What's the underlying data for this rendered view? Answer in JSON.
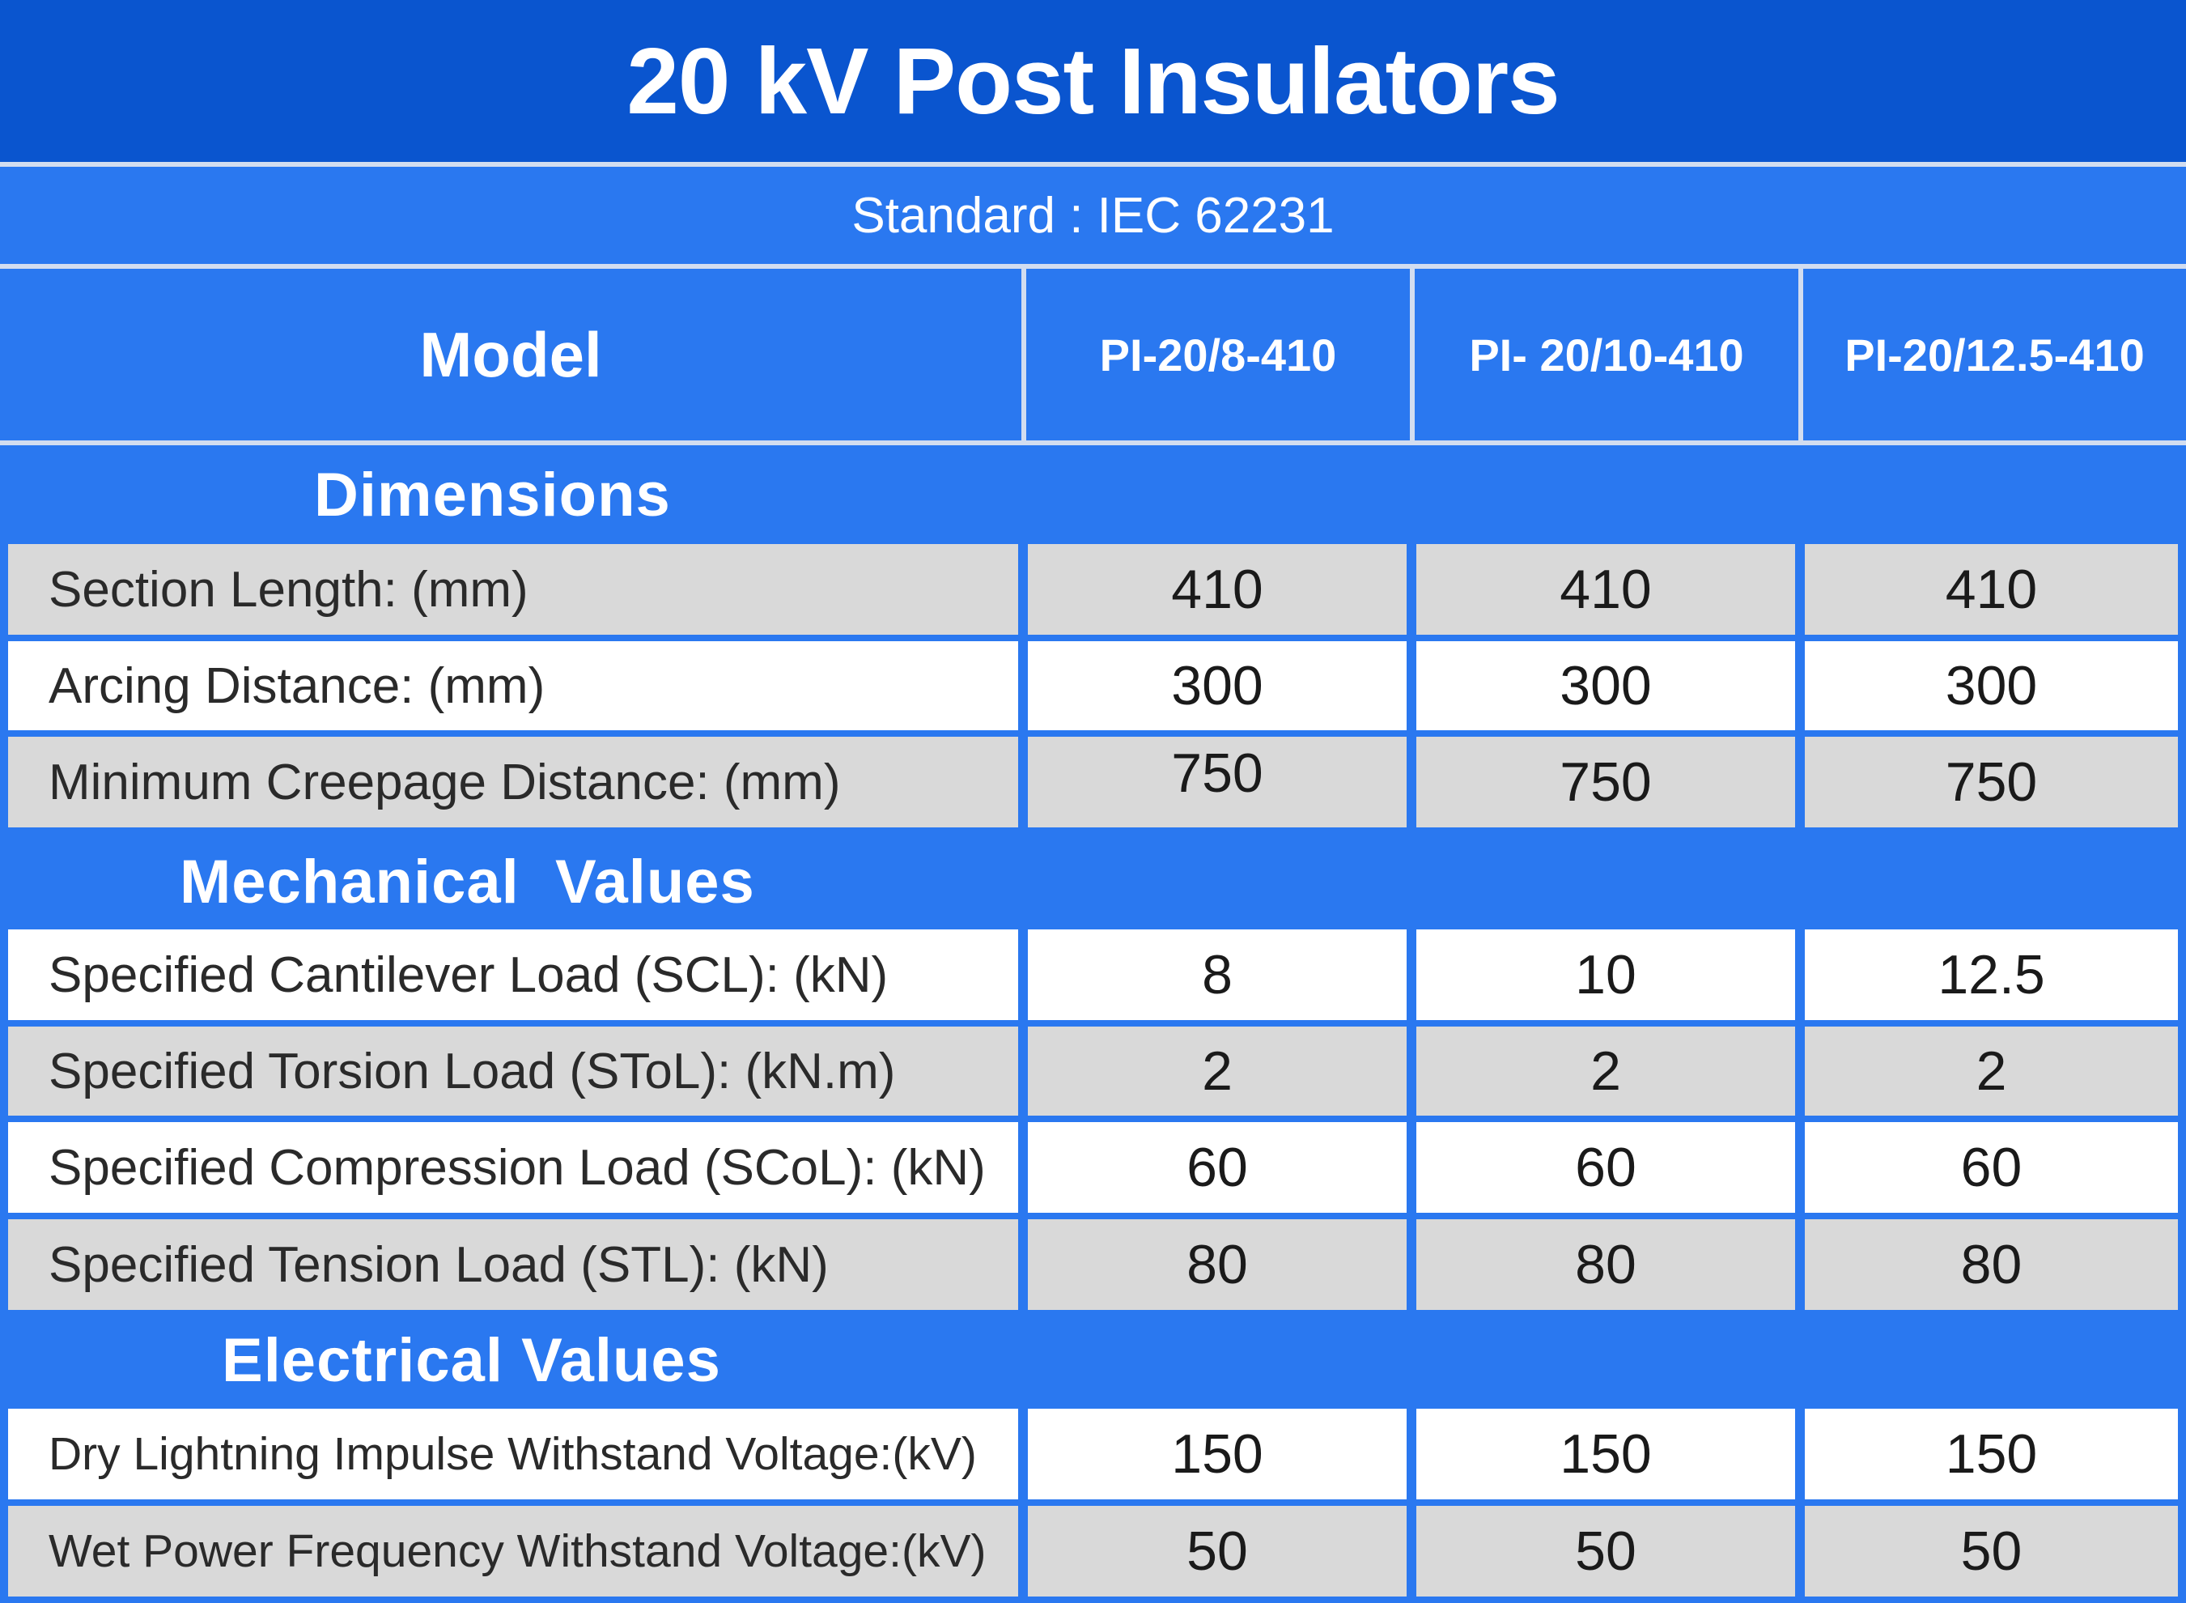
{
  "title": "20 kV Post Insulators",
  "standard": "Standard : IEC 62231",
  "header": {
    "model_label": "Model",
    "models": [
      "PI-20/8-410",
      "PI- 20/10-410",
      "PI-20/12.5-410"
    ]
  },
  "sections": [
    {
      "title": "Dimensions",
      "rows": [
        {
          "label": "Section Length: (mm)",
          "values": [
            "410",
            "410",
            "410"
          ]
        },
        {
          "label": "Arcing Distance: (mm)",
          "values": [
            "300",
            "300",
            "300"
          ]
        },
        {
          "label": "Minimum Creepage Distance: (mm)",
          "values": [
            "750",
            "750",
            "750"
          ]
        }
      ]
    },
    {
      "title": "Mechanical  Values",
      "rows": [
        {
          "label": "Specified Cantilever Load (SCL): (kN)",
          "values": [
            "8",
            "10",
            "12.5"
          ]
        },
        {
          "label": "Specified Torsion Load (SToL): (kN.m)",
          "values": [
            "2",
            "2",
            "2"
          ]
        },
        {
          "label": "Specified Compression Load (SCoL): (kN)",
          "values": [
            "60",
            "60",
            "60"
          ]
        },
        {
          "label": "Specified Tension Load (STL): (kN)",
          "values": [
            "80",
            "80",
            "80"
          ]
        }
      ]
    },
    {
      "title": "Electrical Values",
      "rows": [
        {
          "label": "Dry Lightning Impulse Withstand Voltage:(kV)",
          "values": [
            "150",
            "150",
            "150"
          ]
        },
        {
          "label": "Wet Power Frequency Withstand Voltage:(kV)",
          "values": [
            "50",
            "50",
            "50"
          ]
        }
      ]
    }
  ],
  "colors": {
    "title_bg": "#0a55cf",
    "table_bg": "#2a78f0",
    "row_grey": "#d9d9d9",
    "row_white": "#ffffff",
    "grid_line": "#d2ddf0"
  }
}
